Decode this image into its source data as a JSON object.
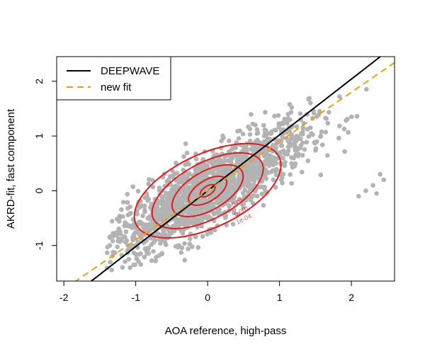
{
  "chart_data": {
    "type": "scatter",
    "title": "",
    "xlabel": "AOA reference, high-pass",
    "ylabel": "AKRD-fit, fast component",
    "xlim": [
      -2.1,
      2.6
    ],
    "ylim": [
      -1.65,
      2.45
    ],
    "x_ticks": [
      "-2",
      "-1",
      "0",
      "1",
      "2"
    ],
    "y_ticks": [
      "-1",
      "0",
      "1",
      "2"
    ],
    "x_tick_values": [
      -2,
      -1,
      0,
      1,
      2
    ],
    "y_tick_values": [
      -1,
      0,
      1,
      2
    ],
    "grid": false,
    "legend_position": "top-left",
    "point_color": "#b3b3b3",
    "scatter_distribution": {
      "description_of_cloud": "dense gray cloud of observations along the fit lines",
      "mean": [
        0.0,
        0.0
      ],
      "x_sd": 0.7,
      "y_sd": 0.6,
      "slope": 0.72,
      "x_range": [
        -1.4,
        2.5
      ],
      "y_range": [
        -1.45,
        2.3
      ]
    },
    "lines": [
      {
        "name": "DEEPWAVE",
        "color": "#000000",
        "dash": "solid",
        "slope": 1.02,
        "intercept": 0.0
      },
      {
        "name": "new fit",
        "color": "#f39c12",
        "dash": "dashed",
        "slope": 0.9,
        "intercept": 0.0
      }
    ],
    "contours": {
      "color": "#e41a1c",
      "levels": [
        {
          "label": "1e-04",
          "rx": 1.1,
          "ry": 0.42,
          "rotate": -25
        },
        {
          "label": "0.001",
          "rx": 0.85,
          "ry": 0.32,
          "rotate": -28
        },
        {
          "label": "0.01",
          "rx": 0.55,
          "ry": 0.22,
          "rotate": -30
        },
        {
          "label": "",
          "rx": 0.3,
          "ry": 0.12,
          "rotate": -32
        },
        {
          "label": "",
          "rx": 0.12,
          "ry": 0.05,
          "rotate": -35
        }
      ]
    }
  }
}
